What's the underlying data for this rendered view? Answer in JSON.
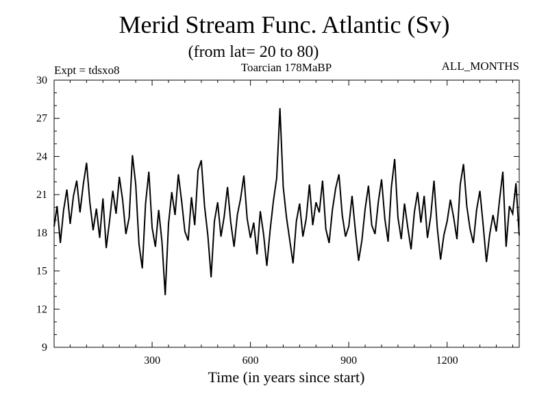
{
  "chart_data": {
    "type": "line",
    "title": "Merid Stream Func. Atlantic (Sv)",
    "subtitle": "(from lat= 20 to 80)",
    "annotations": {
      "left": "Expt = tdsxo8",
      "center": "Toarcian 178MaBP",
      "right": "ALL_MONTHS"
    },
    "xlabel": "Time (in years since start)",
    "ylabel": "",
    "xlim": [
      1,
      1420
    ],
    "ylim": [
      9,
      30
    ],
    "x_ticks": [
      300,
      600,
      900,
      1200
    ],
    "y_ticks": [
      9,
      12,
      15,
      18,
      21,
      24,
      27,
      30
    ],
    "grid": false,
    "series": [
      {
        "x": [
          1,
          10,
          20,
          30,
          40,
          50,
          60,
          70,
          80,
          90,
          100,
          110,
          120,
          130,
          140,
          150,
          160,
          170,
          180,
          190,
          200,
          210,
          220,
          230,
          240,
          250,
          260,
          270,
          280,
          290,
          300,
          310,
          320,
          330,
          340,
          350,
          360,
          370,
          380,
          390,
          400,
          410,
          420,
          430,
          440,
          450,
          460,
          470,
          480,
          490,
          500,
          510,
          520,
          530,
          540,
          550,
          560,
          570,
          580,
          590,
          600,
          610,
          620,
          630,
          640,
          650,
          660,
          670,
          680,
          690,
          700,
          710,
          720,
          730,
          740,
          750,
          760,
          770,
          780,
          790,
          800,
          810,
          820,
          830,
          840,
          850,
          860,
          870,
          880,
          890,
          900,
          910,
          920,
          930,
          940,
          950,
          960,
          970,
          980,
          990,
          1000,
          1010,
          1020,
          1030,
          1040,
          1050,
          1060,
          1070,
          1080,
          1090,
          1100,
          1110,
          1120,
          1130,
          1140,
          1150,
          1160,
          1170,
          1180,
          1190,
          1200,
          1210,
          1220,
          1230,
          1240,
          1250,
          1260,
          1270,
          1280,
          1290,
          1300,
          1310,
          1320,
          1330,
          1340,
          1350,
          1360,
          1370,
          1380,
          1390,
          1400,
          1410,
          1420
        ],
        "values": [
          18.5,
          20.1,
          17.2,
          19.8,
          21.4,
          18.7,
          20.9,
          22.1,
          19.6,
          21.8,
          23.5,
          20.4,
          18.2,
          19.9,
          17.6,
          20.7,
          16.8,
          18.9,
          21.3,
          19.5,
          22.4,
          20.6,
          17.9,
          19.2,
          24.1,
          21.8,
          17.1,
          15.2,
          20.3,
          22.8,
          18.4,
          16.9,
          19.8,
          17.3,
          13.1,
          18.7,
          21.2,
          19.4,
          22.6,
          20.5,
          18.1,
          17.4,
          20.8,
          18.6,
          22.9,
          23.7,
          20.1,
          17.8,
          14.5,
          18.9,
          20.4,
          17.7,
          19.3,
          21.6,
          18.8,
          16.9,
          19.4,
          20.7,
          22.5,
          19.1,
          17.6,
          18.8,
          16.3,
          19.7,
          17.9,
          15.4,
          18.2,
          20.5,
          22.3,
          27.8,
          21.6,
          19.2,
          17.4,
          15.6,
          18.9,
          20.3,
          17.7,
          19.1,
          21.8,
          18.6,
          20.4,
          19.6,
          22.1,
          18.3,
          17.2,
          19.8,
          21.5,
          22.6,
          19.4,
          17.7,
          18.5,
          20.9,
          18.2,
          15.8,
          17.4,
          19.9,
          21.7,
          18.6,
          17.9,
          20.4,
          22.2,
          19.1,
          17.3,
          21.6,
          23.8,
          19.2,
          17.5,
          20.3,
          18.4,
          16.7,
          19.6,
          21.2,
          18.8,
          20.9,
          17.6,
          19.3,
          22.1,
          18.4,
          15.9,
          17.8,
          18.9,
          20.6,
          19.2,
          17.5,
          21.8,
          23.4,
          20.1,
          18.3,
          17.2,
          19.8,
          21.3,
          18.6,
          15.7,
          17.9,
          19.4,
          18.1,
          20.6,
          22.8,
          16.9,
          20.1,
          19.5,
          21.9,
          17.8
        ]
      }
    ]
  }
}
